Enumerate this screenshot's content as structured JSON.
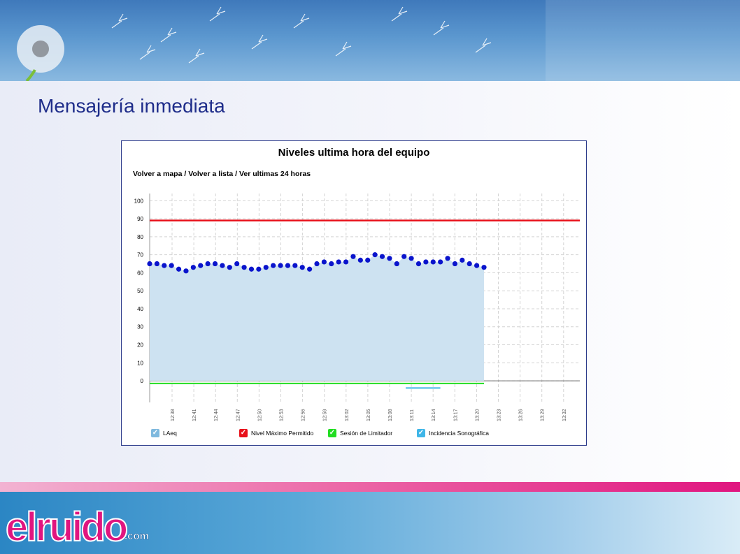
{
  "slide": {
    "title": "Mensajería inmediata"
  },
  "panel": {
    "title": "Niveles ultima hora del equipo",
    "nav": [
      {
        "label": "Volver a mapa"
      },
      {
        "label": "Volver a lista"
      },
      {
        "label": "Ver ultimas 24 horas"
      }
    ],
    "separator": " / "
  },
  "legend": [
    {
      "label": "LAeq",
      "color": "#7fb9de"
    },
    {
      "label": "Nivel Máximo Permitido",
      "color": "#e8101a"
    },
    {
      "label": "Sesión de Limitador",
      "color": "#22dd22"
    },
    {
      "label": "Incidencia Sonográfica",
      "color": "#3fb6e8"
    }
  ],
  "chart_data": {
    "type": "area",
    "x_ticks": [
      "12:38",
      "12:41",
      "12:44",
      "12:47",
      "12:50",
      "12:53",
      "12:56",
      "12:59",
      "13:02",
      "13:05",
      "13:08",
      "13:11",
      "13:14",
      "13:17",
      "13:20",
      "13:23",
      "13:26",
      "13:29",
      "13:32"
    ],
    "y_ticks": [
      0,
      10,
      20,
      30,
      40,
      50,
      60,
      70,
      80,
      90,
      100
    ],
    "ylim": [
      -12,
      104
    ],
    "grid": true,
    "legend_position": "bottom",
    "laeq_values": [
      65,
      65,
      64,
      64,
      62,
      61,
      63,
      64,
      65,
      65,
      64,
      63,
      65,
      63,
      62,
      62,
      63,
      64,
      64,
      64,
      64,
      63,
      62,
      65,
      66,
      65,
      66,
      66,
      69,
      67,
      67,
      70,
      69,
      68,
      65,
      69,
      68,
      65,
      66,
      66,
      66,
      68,
      65,
      67,
      65,
      64,
      63
    ],
    "nivel_maximo": 89,
    "sesion_limitador": -1.5,
    "incidencia_sonografica": -4,
    "colors": {
      "area": "#cde2f1",
      "points": "#0a14cc",
      "max_line": "#e8101a",
      "session_line": "#22dd22",
      "incidence_line": "#3fb6e8",
      "grid": "#d4d4d4"
    }
  },
  "footer": {
    "logo_text": "elruido",
    "logo_suffix": ".com"
  }
}
